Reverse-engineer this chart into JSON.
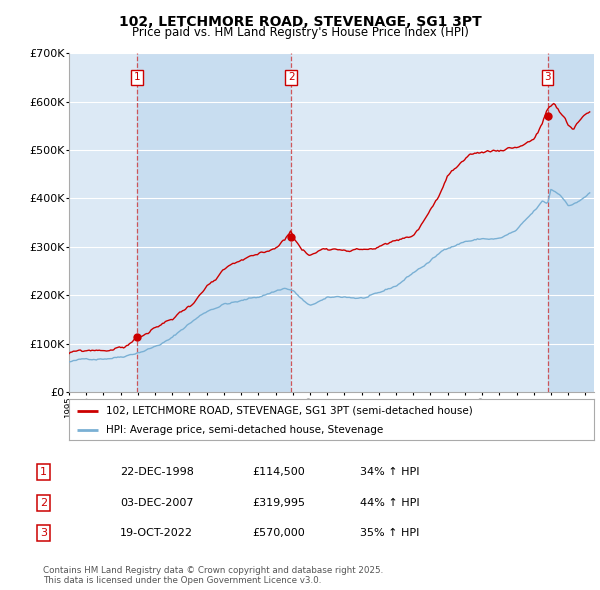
{
  "title": "102, LETCHMORE ROAD, STEVENAGE, SG1 3PT",
  "subtitle": "Price paid vs. HM Land Registry's House Price Index (HPI)",
  "title_fontsize": 10,
  "subtitle_fontsize": 8.5,
  "legend_line1": "102, LETCHMORE ROAD, STEVENAGE, SG1 3PT (semi-detached house)",
  "legend_line2": "HPI: Average price, semi-detached house, Stevenage",
  "red_color": "#cc0000",
  "blue_color": "#7ab0d4",
  "bg_color": "#dce9f5",
  "stripe_color": "#c8ddf0",
  "vline_color": "#cc3333",
  "grid_color": "#ffffff",
  "ylim": [
    0,
    700000
  ],
  "yticks": [
    0,
    100000,
    200000,
    300000,
    400000,
    500000,
    600000,
    700000
  ],
  "sale_year_nums": [
    1998.97,
    2007.92,
    2022.8
  ],
  "sale_prices": [
    114500,
    319995,
    570000
  ],
  "sale_labels": [
    "1",
    "2",
    "3"
  ],
  "table_rows": [
    [
      "1",
      "22-DEC-1998",
      "£114,500",
      "34% ↑ HPI"
    ],
    [
      "2",
      "03-DEC-2007",
      "£319,995",
      "44% ↑ HPI"
    ],
    [
      "3",
      "19-OCT-2022",
      "£570,000",
      "35% ↑ HPI"
    ]
  ],
  "footer_text": "Contains HM Land Registry data © Crown copyright and database right 2025.\nThis data is licensed under the Open Government Licence v3.0.",
  "xmin": 1995.0,
  "xmax": 2025.5
}
